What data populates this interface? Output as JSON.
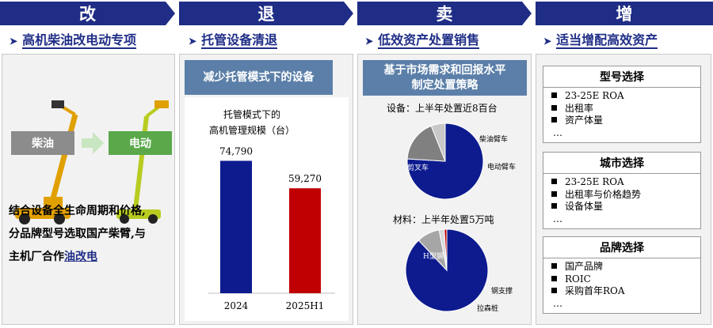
{
  "sections": [
    {
      "banner": "改",
      "title": "高机柴油改电动专项"
    },
    {
      "banner": "退",
      "title": "托管设备清退"
    },
    {
      "banner": "卖",
      "title": "低效资产处置销售"
    },
    {
      "banner": "增",
      "title": "适当增配高效资产"
    }
  ],
  "col1": {
    "diesel_tag": "柴油",
    "electric_tag": "电动",
    "text_lines": [
      "结合设备全生命周期和价格,",
      "分品牌型号选取国产柴臂,与"
    ],
    "text_line3_prefix": "主机厂合作",
    "text_line3_link": "油改电"
  },
  "col2": {
    "header": "减少托管模式下的设备",
    "chart_title_line1": "托管模式下的",
    "chart_title_line2": "高机管理规模（台）"
  },
  "chart_data": [
    {
      "type": "bar",
      "categories": [
        "2024",
        "2025H1"
      ],
      "values": [
        74790,
        59270
      ],
      "value_labels": [
        "74,790",
        "59,270"
      ],
      "colors": [
        "#0d1b8f",
        "#c00000"
      ],
      "title": "托管模式下的 高机管理规模（台）",
      "ylim": [
        0,
        100000
      ]
    },
    {
      "type": "pie",
      "title": "设备：上半年处置近8百台",
      "labels": [
        "剪叉车",
        "柴油臂车",
        "电动臂车"
      ],
      "values": [
        76,
        18,
        6
      ],
      "colors": [
        "#0d1b8f",
        "#808080",
        "#c8c8c8"
      ]
    },
    {
      "type": "pie",
      "title": "材料：上半年处置5万吨",
      "labels": [
        "H型钢",
        "钢支撑",
        "拉森桩",
        ""
      ],
      "values": [
        88,
        9,
        2,
        1
      ],
      "colors": [
        "#0d1b8f",
        "#a6a6a6",
        "#d9d9d9",
        "#c00000"
      ]
    }
  ],
  "col3": {
    "header_line1": "基于市场需求和回报水平",
    "header_line2": "制定处置策略",
    "pie1_title": "设备：上半年处置近8百台",
    "pie2_title": "材料：上半年处置5万吨"
  },
  "col4": {
    "boxes": [
      {
        "title": "型号选择",
        "items": [
          "23-25E ROA",
          "出租率",
          "资产体量",
          "…"
        ]
      },
      {
        "title": "城市选择",
        "items": [
          "23-25E ROA",
          "出租率与价格趋势",
          "设备体量",
          "…"
        ]
      },
      {
        "title": "品牌选择",
        "items": [
          "国产品牌",
          "ROIC",
          "采购首年ROA",
          "…"
        ]
      }
    ]
  }
}
